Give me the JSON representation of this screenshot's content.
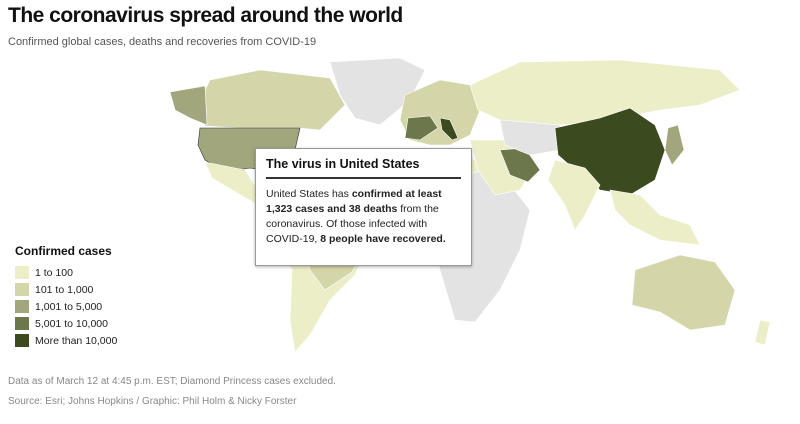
{
  "header": {
    "title": "The coronavirus spread around the world",
    "subtitle": "Confirmed global cases, deaths and recoveries from COVID-19"
  },
  "popup": {
    "title": "The virus in United States",
    "text": [
      {
        "text": "United States has ",
        "bold": false
      },
      {
        "text": "confirmed at least 1,323 cases and 38 deaths",
        "bold": true
      },
      {
        "text": " from the coronavirus. Of those infected with COVID-19, ",
        "bold": false
      },
      {
        "text": "8 people have recovered.",
        "bold": true
      }
    ]
  },
  "legend": {
    "title": "Confirmed cases",
    "items": [
      {
        "label": "1 to 100",
        "color": "#eceec8"
      },
      {
        "label": "101 to 1,000",
        "color": "#d4d5a8"
      },
      {
        "label": "1,001 to 5,000",
        "color": "#a2a67c"
      },
      {
        "label": "5,001 to 10,000",
        "color": "#6c774b"
      },
      {
        "label": "More than 10,000",
        "color": "#3b4a1f"
      }
    ]
  },
  "footer": {
    "note": "Data as of March 12 at 4:45 p.m. EST; Diamond Princess cases excluded.",
    "source": "Source: Esri; Johns Hopkins / Graphic: Phil Holm & Nicky Forster"
  }
}
